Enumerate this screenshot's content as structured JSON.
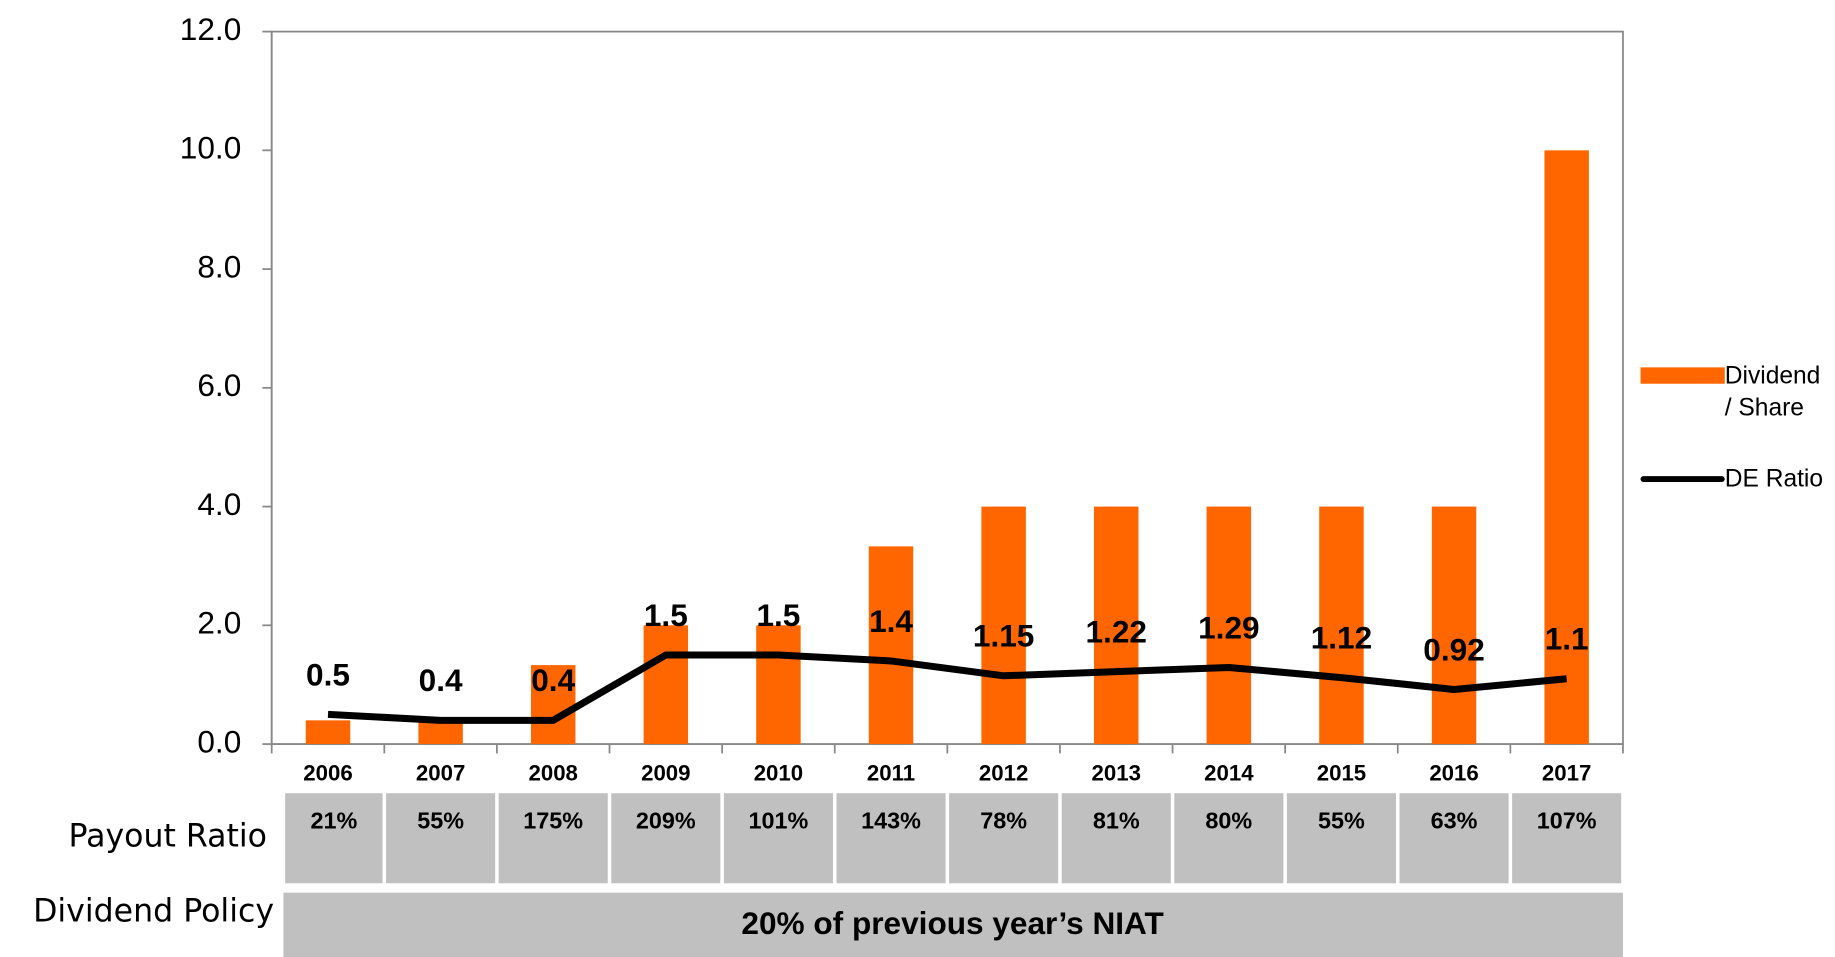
{
  "chart_data": {
    "type": "bar_line",
    "categories": [
      "2006",
      "2007",
      "2008",
      "2009",
      "2010",
      "2011",
      "2012",
      "2013",
      "2014",
      "2015",
      "2016",
      "2017"
    ],
    "series": [
      {
        "name": "Dividend / Share",
        "type": "bar",
        "color": "#ff6600",
        "values": [
          0.4,
          0.4,
          1.33,
          2.0,
          2.0,
          3.33,
          4.0,
          4.0,
          4.0,
          4.0,
          4.0,
          10.0
        ]
      },
      {
        "name": "DE Ratio",
        "type": "line",
        "color": "#000000",
        "values": [
          0.5,
          0.4,
          0.4,
          1.5,
          1.5,
          1.4,
          1.15,
          1.22,
          1.29,
          1.12,
          0.92,
          1.1
        ]
      }
    ],
    "ylim": [
      0,
      12
    ],
    "yticks": [
      {
        "value": 0,
        "label": "0.0"
      },
      {
        "value": 2,
        "label": "2.0"
      },
      {
        "value": 4,
        "label": "4.0"
      },
      {
        "value": 6,
        "label": "6.0"
      },
      {
        "value": 8,
        "label": "8.0"
      },
      {
        "value": 10,
        "label": "10.0"
      },
      {
        "value": 12,
        "label": "12.0"
      }
    ],
    "legend": "right"
  },
  "table": {
    "rows": [
      {
        "label": "Payout Ratio",
        "cells": [
          "21%",
          "55%",
          "175%",
          "209%",
          "101%",
          "143%",
          "78%",
          "81%",
          "80%",
          "55%",
          "63%",
          "107%"
        ]
      },
      {
        "label": "Dividend Policy",
        "text": "20% of previous year’s NIAT"
      }
    ]
  }
}
